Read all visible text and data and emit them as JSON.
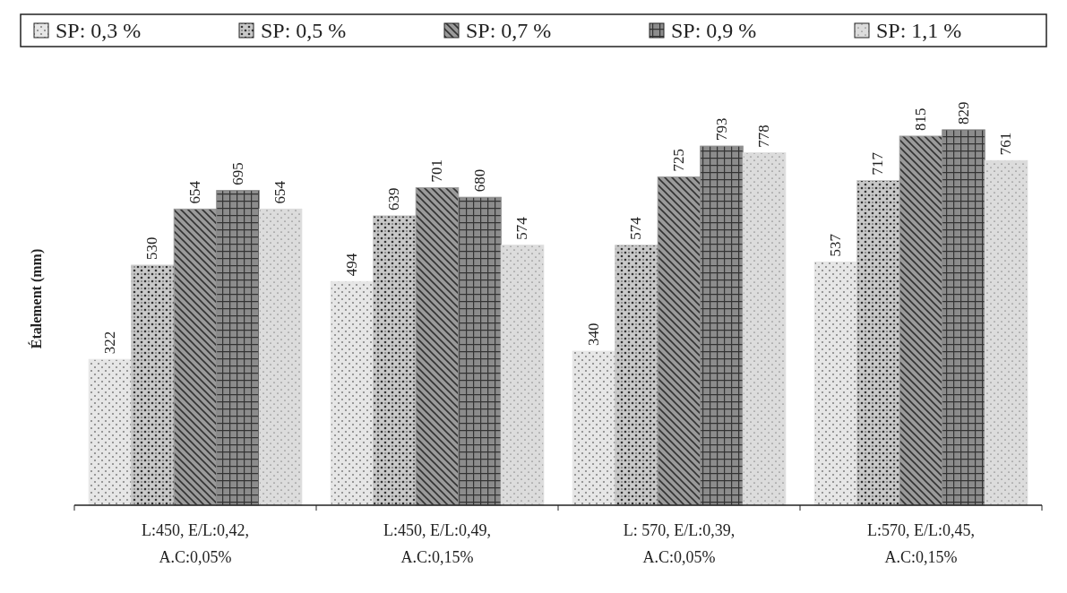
{
  "chart_data": {
    "type": "bar",
    "ylabel": "Étalement (mm)",
    "categories": [
      "L:450, E/L:0,42, A.C:0,05%",
      "L:450, E/L:0,49, A.C:0,15%",
      "L: 570, E/L:0,39, A.C:0,05%",
      "L:570, E/L:0,45, A.C:0,15%"
    ],
    "series": [
      {
        "name": "SP: 0,3 %",
        "color": "#e6e6e6",
        "values": [
          322,
          494,
          340,
          537
        ]
      },
      {
        "name": "SP: 0,5 %",
        "color": "#c8c8c8",
        "values": [
          530,
          639,
          574,
          717
        ]
      },
      {
        "name": "SP: 0,7 %",
        "color": "#9a9a9a",
        "values": [
          654,
          701,
          725,
          815
        ]
      },
      {
        "name": "SP: 0,9 %",
        "color": "#8c8c8c",
        "values": [
          695,
          680,
          793,
          829
        ]
      },
      {
        "name": "SP: 1,1 %",
        "color": "#dcdcdc",
        "values": [
          654,
          574,
          778,
          761
        ]
      }
    ],
    "data_labels": true,
    "legend": "top",
    "grid": false
  }
}
